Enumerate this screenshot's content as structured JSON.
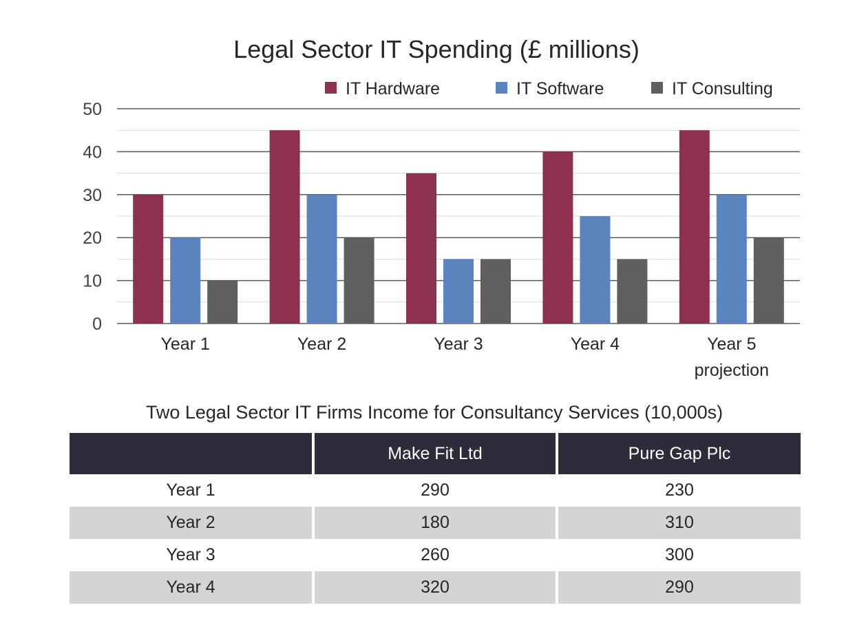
{
  "chart_data": {
    "type": "bar",
    "title": "Legal Sector IT Spending (£ millions)",
    "categories": [
      "Year 1",
      "Year 2",
      "Year 3",
      "Year 4",
      "Year 5 projection"
    ],
    "category_lines": [
      [
        "Year 1"
      ],
      [
        "Year 2"
      ],
      [
        "Year 3"
      ],
      [
        "Year 4"
      ],
      [
        "Year 5",
        "projection"
      ]
    ],
    "series": [
      {
        "name": "IT Hardware",
        "color": "#8e3150",
        "values": [
          30,
          45,
          35,
          40,
          45
        ]
      },
      {
        "name": "IT Software",
        "color": "#5b83bd",
        "values": [
          20,
          30,
          15,
          25,
          30
        ]
      },
      {
        "name": "IT Consulting",
        "color": "#5f5f5f",
        "values": [
          10,
          20,
          15,
          15,
          20
        ]
      }
    ],
    "ylim": [
      0,
      50
    ],
    "yticks": [
      "0",
      "10",
      "20",
      "30",
      "40",
      "50"
    ],
    "grid": true,
    "legend": "top-right"
  },
  "table": {
    "title": "Two Legal Sector IT Firms Income for Consultancy Services (10,000s)",
    "headers": [
      "",
      "Make Fit Ltd",
      "Pure Gap Plc"
    ],
    "rows": [
      [
        "Year 1",
        "290",
        "230"
      ],
      [
        "Year 2",
        "180",
        "310"
      ],
      [
        "Year 3",
        "260",
        "300"
      ],
      [
        "Year 4",
        "320",
        "290"
      ]
    ]
  }
}
